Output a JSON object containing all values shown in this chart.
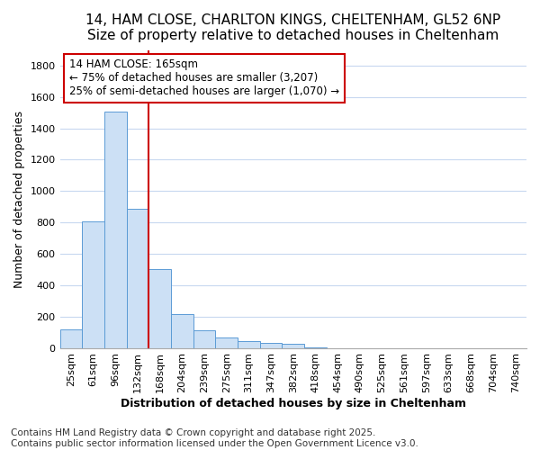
{
  "title1": "14, HAM CLOSE, CHARLTON KINGS, CHELTENHAM, GL52 6NP",
  "title2": "Size of property relative to detached houses in Cheltenham",
  "xlabel": "Distribution of detached houses by size in Cheltenham",
  "ylabel": "Number of detached properties",
  "categories": [
    "25sqm",
    "61sqm",
    "96sqm",
    "132sqm",
    "168sqm",
    "204sqm",
    "239sqm",
    "275sqm",
    "311sqm",
    "347sqm",
    "382sqm",
    "418sqm",
    "454sqm",
    "490sqm",
    "525sqm",
    "561sqm",
    "597sqm",
    "633sqm",
    "668sqm",
    "704sqm",
    "740sqm"
  ],
  "values": [
    120,
    805,
    1505,
    890,
    505,
    215,
    110,
    65,
    45,
    32,
    25,
    5,
    0,
    0,
    0,
    0,
    0,
    0,
    0,
    0,
    0
  ],
  "bar_color": "#cce0f5",
  "bar_edge_color": "#5b9bd5",
  "vline_pos": 3.5,
  "vline_color": "#cc0000",
  "annotation_text": "14 HAM CLOSE: 165sqm\n← 75% of detached houses are smaller (3,207)\n25% of semi-detached houses are larger (1,070) →",
  "annotation_box_color": "#ffffff",
  "annotation_box_edge": "#cc0000",
  "ylim": [
    0,
    1900
  ],
  "yticks": [
    0,
    200,
    400,
    600,
    800,
    1000,
    1200,
    1400,
    1600,
    1800
  ],
  "footer_text": "Contains HM Land Registry data © Crown copyright and database right 2025.\nContains public sector information licensed under the Open Government Licence v3.0.",
  "bg_color": "#ffffff",
  "plot_bg_color": "#ffffff",
  "grid_color": "#c8d8f0",
  "title1_fontsize": 11,
  "title2_fontsize": 10,
  "axis_label_fontsize": 9,
  "tick_fontsize": 8,
  "annotation_fontsize": 8.5,
  "footer_fontsize": 7.5
}
